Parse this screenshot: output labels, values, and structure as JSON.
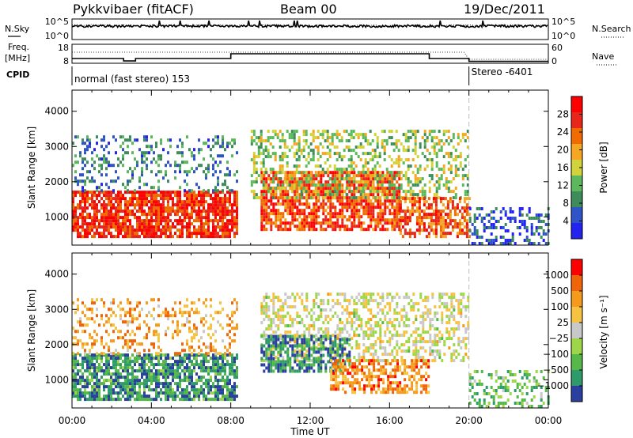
{
  "header": {
    "title": "Pykkvibaer (fitACF)",
    "beam": "Beam 00",
    "date": "19/Dec/2011"
  },
  "top_panels": {
    "nsky_label": "N.Sky",
    "nsearch_label": "N.Search",
    "nsky_ticks": [
      "10^5",
      "10^0"
    ],
    "nsearch_ticks": [
      "10^5",
      "10^0"
    ],
    "freq_label_1": "Freq.",
    "freq_label_2": "[MHz]",
    "freq_ticks": [
      "18",
      "8"
    ],
    "nave_label": "Nave",
    "nave_ticks": [
      "60",
      "0"
    ],
    "cpid_label": "CPID",
    "cpid_segments": [
      {
        "label": "normal (fast stereo) 153",
        "start_hour": 0,
        "end_hour": 20
      },
      {
        "label": "Stereo -6401",
        "start_hour": 20,
        "end_hour": 24
      }
    ],
    "freq_steps": [
      {
        "start_hour": 0,
        "end_hour": 2.6,
        "mhz": 10.5
      },
      {
        "start_hour": 2.6,
        "end_hour": 3.2,
        "mhz": 9.2
      },
      {
        "start_hour": 3.2,
        "end_hour": 8.0,
        "mhz": 10.5
      },
      {
        "start_hour": 8.0,
        "end_hour": 18.0,
        "mhz": 13.0
      },
      {
        "start_hour": 18.0,
        "end_hour": 20.0,
        "mhz": 10.5
      },
      {
        "start_hour": 20.0,
        "end_hour": 24.0,
        "mhz": 9.0
      }
    ]
  },
  "chart_data": [
    {
      "type": "heatmap",
      "name": "power",
      "ylabel": "Slant Range [km]",
      "xlabel": "",
      "x_range_hours": [
        0,
        24
      ],
      "ylim": [
        200,
        4600
      ],
      "y_ticks": [
        1000,
        2000,
        3000,
        4000
      ],
      "colorbar_label": "Power [dB]",
      "colorbar_ticks": [
        "28",
        "24",
        "20",
        "16",
        "12",
        "8",
        "4"
      ],
      "colorscale": [
        "#2323f0",
        "#2f54c8",
        "#3d8c5a",
        "#5cb85c",
        "#d2d23c",
        "#f5a623",
        "#f06b00",
        "#e8261a",
        "#ff0000"
      ],
      "x_tick_labels": [
        "00:00",
        "04:00",
        "08:00",
        "12:00",
        "16:00",
        "20:00",
        "00:00"
      ],
      "features": [
        {
          "start_hour": 0.0,
          "end_hour": 8.3,
          "range_low": 400,
          "range_high": 1700,
          "level": 0.85,
          "density": 0.8
        },
        {
          "start_hour": 0.0,
          "end_hour": 8.3,
          "range_low": 1700,
          "range_high": 3300,
          "level": 0.25,
          "density": 0.25
        },
        {
          "start_hour": 9.5,
          "end_hour": 16.5,
          "range_low": 600,
          "range_high": 2300,
          "level": 0.8,
          "density": 0.75
        },
        {
          "start_hour": 9.0,
          "end_hour": 20.0,
          "range_low": 1500,
          "range_high": 3400,
          "level": 0.45,
          "density": 0.4
        },
        {
          "start_hour": 16.5,
          "end_hour": 20.0,
          "range_low": 400,
          "range_high": 1500,
          "level": 0.75,
          "density": 0.6
        },
        {
          "start_hour": 20.0,
          "end_hour": 24.0,
          "range_low": 200,
          "range_high": 1200,
          "level": 0.15,
          "density": 0.35
        }
      ]
    },
    {
      "type": "heatmap",
      "name": "velocity",
      "ylabel": "Slant Range [km]",
      "xlabel": "Time UT",
      "x_range_hours": [
        0,
        24
      ],
      "ylim": [
        200,
        4600
      ],
      "y_ticks": [
        1000,
        2000,
        3000,
        4000
      ],
      "colorbar_label": "Velocity [m s⁻¹]",
      "colorbar_ticks": [
        "1000",
        "500",
        "100",
        "25",
        "−25",
        "−100",
        "−500",
        "−1000"
      ],
      "colorscale": [
        "#2b3fa0",
        "#2f9a6a",
        "#56b848",
        "#9ed64a",
        "#c8c8c8",
        "#f5c242",
        "#f59a1c",
        "#f0640a",
        "#ff0000"
      ],
      "x_tick_labels": [
        "00:00",
        "04:00",
        "08:00",
        "12:00",
        "16:00",
        "20:00",
        "00:00"
      ],
      "features": [
        {
          "start_hour": 0.0,
          "end_hour": 8.3,
          "range_low": 400,
          "range_high": 1700,
          "level": 0.18,
          "density": 0.75
        },
        {
          "start_hour": 0.0,
          "end_hour": 8.3,
          "range_low": 1700,
          "range_high": 3300,
          "level": 0.7,
          "density": 0.25
        },
        {
          "start_hour": 9.5,
          "end_hour": 20.0,
          "range_low": 1500,
          "range_high": 3400,
          "level": 0.5,
          "density": 0.45
        },
        {
          "start_hour": 9.5,
          "end_hour": 14.0,
          "range_low": 1200,
          "range_high": 2200,
          "level": 0.15,
          "density": 0.6
        },
        {
          "start_hour": 13.0,
          "end_hour": 18.0,
          "range_low": 600,
          "range_high": 1500,
          "level": 0.75,
          "density": 0.55
        },
        {
          "start_hour": 20.0,
          "end_hour": 24.0,
          "range_low": 200,
          "range_high": 1200,
          "level": 0.3,
          "density": 0.35
        }
      ]
    }
  ]
}
